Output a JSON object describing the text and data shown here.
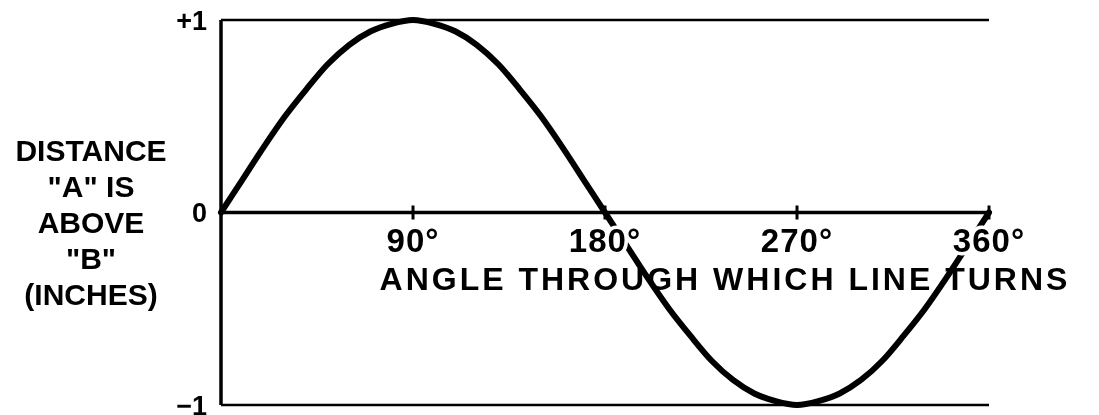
{
  "chart_data": {
    "type": "line",
    "xlabel": "ANGLE THROUGH WHICH LINE TURNS",
    "ylabel": "DISTANCE\n\"A\" IS\nABOVE\n\"B\"\n(INCHES)",
    "x": [
      0,
      10,
      20,
      30,
      40,
      50,
      60,
      70,
      80,
      90,
      100,
      110,
      120,
      130,
      140,
      150,
      160,
      170,
      180,
      190,
      200,
      210,
      220,
      230,
      240,
      250,
      260,
      270,
      280,
      290,
      300,
      310,
      320,
      330,
      340,
      350,
      360
    ],
    "values": [
      0,
      0.17,
      0.34,
      0.5,
      0.64,
      0.77,
      0.87,
      0.94,
      0.98,
      1,
      0.98,
      0.94,
      0.87,
      0.77,
      0.64,
      0.5,
      0.34,
      0.17,
      0,
      -0.17,
      -0.34,
      -0.5,
      -0.64,
      -0.77,
      -0.87,
      -0.94,
      -0.98,
      -1,
      -0.98,
      -0.94,
      -0.87,
      -0.77,
      -0.64,
      -0.5,
      -0.34,
      -0.17,
      0
    ],
    "color": "#000000",
    "xlim": [
      0,
      360
    ],
    "xticks": [
      {
        "value": 90,
        "label": "90°"
      },
      {
        "value": 180,
        "label": "180°"
      },
      {
        "value": 270,
        "label": "270°"
      },
      {
        "value": 360,
        "label": "360°"
      }
    ],
    "ylim": [
      -1,
      1
    ],
    "yticks": [
      {
        "value": -1,
        "label": "−1"
      },
      0,
      {
        "value": 1,
        "label": "+1"
      }
    ],
    "marker": "none",
    "line_style": "solid"
  }
}
